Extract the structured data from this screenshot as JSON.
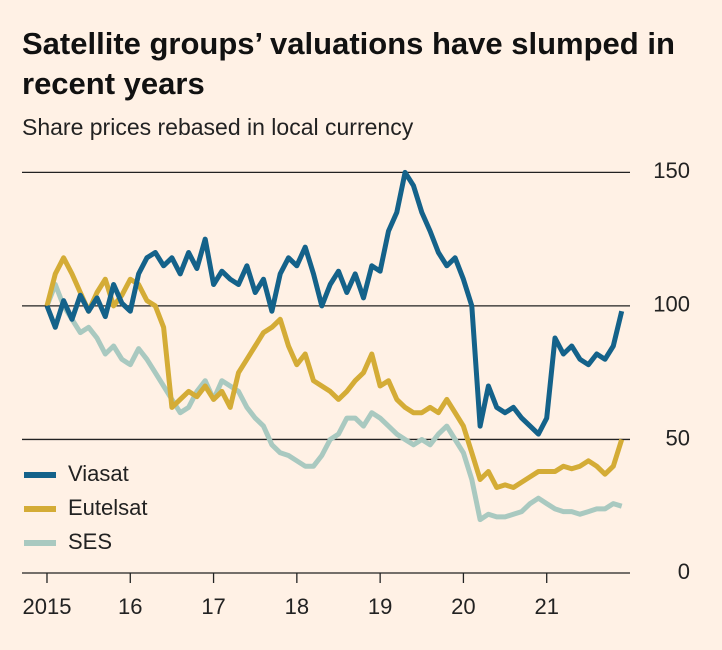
{
  "chart_data": {
    "type": "line",
    "title": "Satellite groups’ valuations have slumped in recent years",
    "subtitle": "Share prices rebased in local currency",
    "x": [
      2015.0,
      2015.1,
      2015.2,
      2015.3,
      2015.4,
      2015.5,
      2015.6,
      2015.7,
      2015.8,
      2015.9,
      2016.0,
      2016.1,
      2016.2,
      2016.3,
      2016.4,
      2016.5,
      2016.6,
      2016.7,
      2016.8,
      2016.9,
      2017.0,
      2017.1,
      2017.2,
      2017.3,
      2017.4,
      2017.5,
      2017.6,
      2017.7,
      2017.8,
      2017.9,
      2018.0,
      2018.1,
      2018.2,
      2018.3,
      2018.4,
      2018.5,
      2018.6,
      2018.7,
      2018.8,
      2018.9,
      2019.0,
      2019.1,
      2019.2,
      2019.3,
      2019.4,
      2019.5,
      2019.6,
      2019.7,
      2019.8,
      2019.9,
      2020.0,
      2020.1,
      2020.2,
      2020.3,
      2020.4,
      2020.5,
      2020.6,
      2020.7,
      2020.8,
      2020.9,
      2021.0,
      2021.1,
      2021.2,
      2021.3,
      2021.4,
      2021.5,
      2021.6,
      2021.7,
      2021.8,
      2021.9
    ],
    "series": [
      {
        "name": "Viasat",
        "color": "#14628a",
        "values": [
          100,
          92,
          102,
          95,
          104,
          98,
          103,
          96,
          108,
          101,
          98,
          112,
          118,
          120,
          115,
          118,
          112,
          120,
          114,
          125,
          108,
          113,
          110,
          108,
          115,
          105,
          110,
          98,
          112,
          118,
          115,
          122,
          112,
          100,
          108,
          113,
          105,
          112,
          103,
          115,
          113,
          128,
          135,
          150,
          145,
          135,
          128,
          120,
          115,
          118,
          110,
          100,
          55,
          70,
          62,
          60,
          62,
          58,
          55,
          52,
          58,
          88,
          82,
          85,
          80,
          78,
          82,
          80,
          85,
          98
        ]
      },
      {
        "name": "Eutelsat",
        "color": "#d4ac36",
        "values": [
          100,
          112,
          118,
          112,
          105,
          98,
          105,
          110,
          100,
          104,
          110,
          108,
          102,
          100,
          92,
          62,
          65,
          68,
          66,
          70,
          65,
          68,
          62,
          75,
          80,
          85,
          90,
          92,
          95,
          85,
          78,
          82,
          72,
          70,
          68,
          65,
          68,
          72,
          75,
          82,
          70,
          72,
          65,
          62,
          60,
          60,
          62,
          60,
          65,
          60,
          55,
          45,
          35,
          38,
          32,
          33,
          32,
          34,
          36,
          38,
          38,
          38,
          40,
          39,
          40,
          42,
          40,
          37,
          40,
          50
        ]
      },
      {
        "name": "SES",
        "color": "#a9c9c0",
        "values": [
          100,
          108,
          100,
          95,
          90,
          92,
          88,
          82,
          85,
          80,
          78,
          84,
          80,
          75,
          70,
          65,
          60,
          62,
          68,
          72,
          65,
          72,
          70,
          68,
          62,
          58,
          55,
          48,
          45,
          44,
          42,
          40,
          40,
          44,
          50,
          52,
          58,
          58,
          55,
          60,
          58,
          55,
          52,
          50,
          48,
          50,
          48,
          52,
          55,
          50,
          45,
          35,
          20,
          22,
          21,
          21,
          22,
          23,
          26,
          28,
          26,
          24,
          23,
          23,
          22,
          23,
          24,
          24,
          26,
          25
        ]
      }
    ],
    "xlim": [
      2014.7,
      2022
    ],
    "xticks": [
      2015,
      {
        "value": 2016,
        "label": "16"
      },
      {
        "value": 2017,
        "label": "17"
      },
      {
        "value": 2018,
        "label": "18"
      },
      {
        "value": 2019,
        "label": "19"
      },
      {
        "value": 2020,
        "label": "20"
      },
      {
        "value": 2021,
        "label": "21"
      }
    ],
    "ylim": [
      0,
      155
    ],
    "yticks": [
      0,
      50,
      100,
      150
    ],
    "grid": true,
    "legend": "lower left"
  }
}
